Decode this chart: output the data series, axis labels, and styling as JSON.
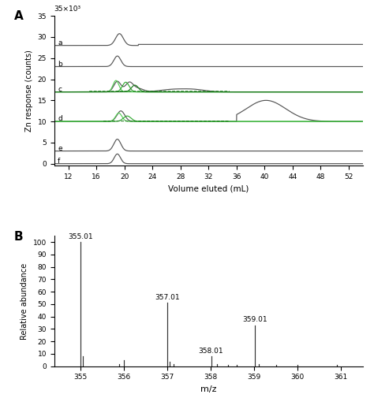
{
  "panel_A_label": "A",
  "panel_B_label": "B",
  "xlabel_A": "Volume eluted (mL)",
  "ylabel_A": "Zn response (counts)",
  "ylabel_scale": "35×10³",
  "xlim_A": [
    10,
    54
  ],
  "ylim_A": [
    -0.5,
    35
  ],
  "xticks_A": [
    12,
    16,
    20,
    24,
    28,
    32,
    36,
    40,
    44,
    48,
    52
  ],
  "yticks_A": [
    0,
    5,
    10,
    15,
    20,
    25,
    30,
    35
  ],
  "trace_offsets": [
    28,
    23,
    17,
    10,
    3,
    0
  ],
  "dark_gray": "#555555",
  "green_dark": "#1a7a1a",
  "green_light": "#55cc55",
  "green_medium": "#33aa33",
  "xlabel_B": "m/z",
  "ylabel_B": "Relative abundance",
  "xlim_B": [
    354.4,
    361.5
  ],
  "ylim_B": [
    0,
    105
  ],
  "xticks_B": [
    355,
    356,
    357,
    358,
    359,
    360,
    361
  ],
  "yticks_B": [
    0,
    10,
    20,
    30,
    40,
    50,
    60,
    70,
    80,
    90,
    100
  ],
  "ms_peaks": [
    {
      "mz": 355.01,
      "intensity": 100,
      "label": "355.01"
    },
    {
      "mz": 355.06,
      "intensity": 8,
      "label": ""
    },
    {
      "mz": 355.9,
      "intensity": 1.5,
      "label": ""
    },
    {
      "mz": 356.01,
      "intensity": 5,
      "label": ""
    },
    {
      "mz": 357.01,
      "intensity": 51,
      "label": "357.01"
    },
    {
      "mz": 357.06,
      "intensity": 3.5,
      "label": ""
    },
    {
      "mz": 357.15,
      "intensity": 1.5,
      "label": ""
    },
    {
      "mz": 358.01,
      "intensity": 8,
      "label": "358.01"
    },
    {
      "mz": 358.15,
      "intensity": 1.5,
      "label": ""
    },
    {
      "mz": 358.4,
      "intensity": 1.2,
      "label": ""
    },
    {
      "mz": 358.6,
      "intensity": 1.0,
      "label": ""
    },
    {
      "mz": 359.01,
      "intensity": 33,
      "label": "359.01"
    },
    {
      "mz": 359.1,
      "intensity": 1.5,
      "label": ""
    },
    {
      "mz": 359.5,
      "intensity": 0.8,
      "label": ""
    },
    {
      "mz": 360.0,
      "intensity": 0.8,
      "label": ""
    },
    {
      "mz": 360.9,
      "intensity": 0.8,
      "label": ""
    }
  ]
}
